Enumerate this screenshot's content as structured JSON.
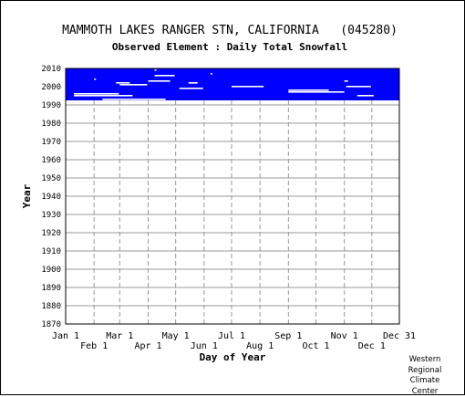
{
  "chart_data": {
    "type": "heatmap",
    "title": "MAMMOTH LAKES RANGER STN, CALIFORNIA   (045280)",
    "subtitle": "Observed Element : Daily Total Snowfall",
    "xlabel": "Day of Year",
    "ylabel": "Year",
    "x_ticks_top_row": [
      "Jan 1",
      "Mar 1",
      "May 1",
      "Jul 1",
      "Sep 1",
      "Nov 1",
      "Dec 31"
    ],
    "x_ticks_bottom_row": [
      "Feb 1",
      "Apr 1",
      "Jun 1",
      "Aug 1",
      "Oct 1",
      "Dec 1"
    ],
    "y_ticks": [
      "2010",
      "2000",
      "1990",
      "1980",
      "1970",
      "1960",
      "1950",
      "1940",
      "1930",
      "1920",
      "1910",
      "1900",
      "1890",
      "1880",
      "1870"
    ],
    "ylim": [
      1870,
      2010
    ],
    "xlim": [
      "Jan 1",
      "Dec 31"
    ],
    "grid": true,
    "data_color": "#0000ff",
    "missing_color": "#ffffff",
    "data_period": {
      "start_year": 1993,
      "end_year": 2010
    },
    "missing_segments": [
      {
        "year": 2009,
        "from": "Apr 8",
        "to": "Apr 10"
      },
      {
        "year": 2007,
        "from": "Jun 8",
        "to": "Jun 10"
      },
      {
        "year": 2006,
        "from": "Apr 8",
        "to": "Apr 30"
      },
      {
        "year": 2004,
        "from": "Feb 1",
        "to": "Feb 3"
      },
      {
        "year": 2003,
        "from": "Apr 1",
        "to": "Apr 25"
      },
      {
        "year": 2003,
        "from": "Nov 1",
        "to": "Nov 5"
      },
      {
        "year": 2002,
        "from": "Feb 25",
        "to": "Mar 12"
      },
      {
        "year": 2002,
        "from": "May 15",
        "to": "May 25"
      },
      {
        "year": 2001,
        "from": "Mar 1",
        "to": "Mar 31"
      },
      {
        "year": 2000,
        "from": "Jul 1",
        "to": "Aug 5"
      },
      {
        "year": 2000,
        "from": "Nov 3",
        "to": "Nov 30"
      },
      {
        "year": 1999,
        "from": "May 5",
        "to": "May 31"
      },
      {
        "year": 1998,
        "from": "Sep 1",
        "to": "Oct 15"
      },
      {
        "year": 1997,
        "from": "Sep 1",
        "to": "Nov 1"
      },
      {
        "year": 1996,
        "from": "Jan 10",
        "to": "Feb 28"
      },
      {
        "year": 1995,
        "from": "Jan 10",
        "to": "Mar 15"
      },
      {
        "year": 1995,
        "from": "Nov 15",
        "to": "Dec 3"
      },
      {
        "year": 1993,
        "from": "Feb 10",
        "to": "Apr 20"
      }
    ],
    "credit": [
      "Western",
      "Regional",
      "Climate",
      "Center"
    ]
  }
}
